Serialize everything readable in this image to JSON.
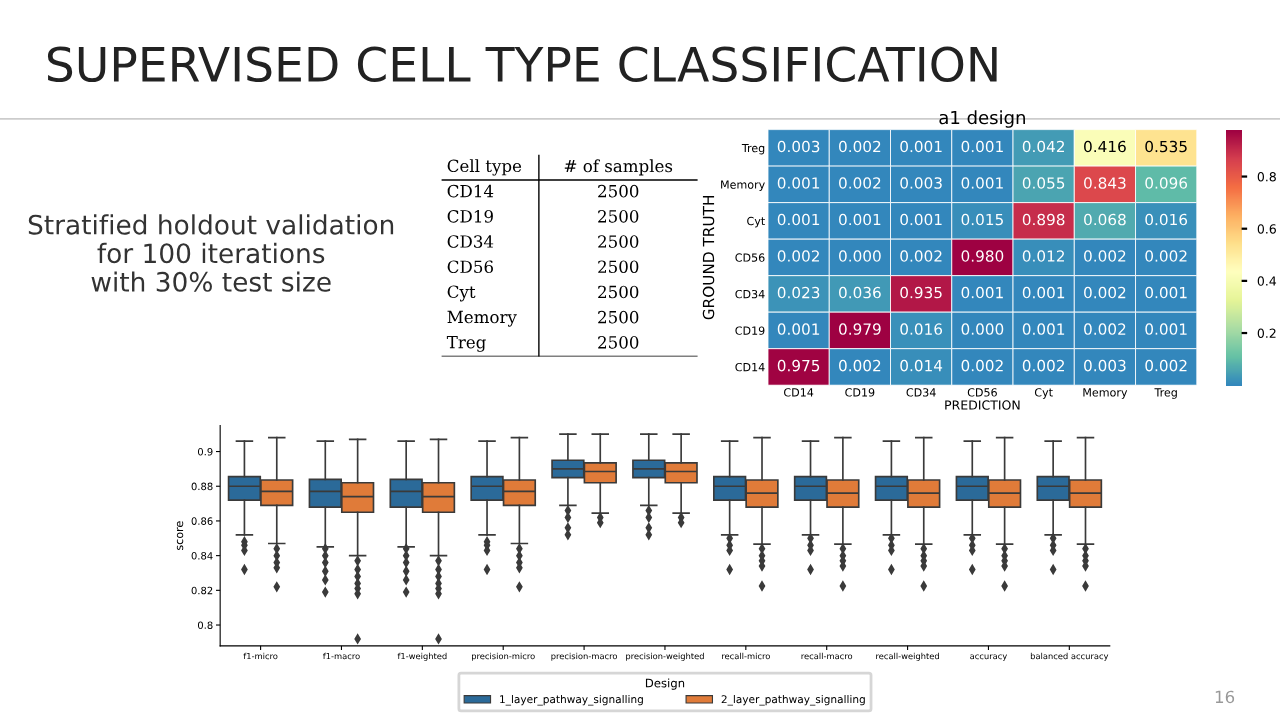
{
  "chart_data": [
    {
      "type": "other",
      "title": "SUPERVISED CELL TYPE CLASSIFICATION",
      "annotations": [
        "Stratified holdout validation\nfor 100 iterations\nwith 30% test size",
        "16"
      ]
    },
    {
      "type": "other",
      "categories": [
        "CD14",
        "CD19",
        "CD34",
        "CD56",
        "Cyt",
        "Memory",
        "Treg"
      ],
      "values": [
        2500,
        2500,
        2500,
        2500,
        2500,
        2500,
        2500
      ],
      "data_labels": true,
      "annotations": [
        "Cell type",
        "# of samples"
      ]
    },
    {
      "type": "heatmap",
      "title": "a1 design",
      "xlabel": "PREDICTION",
      "ylabel": "GROUND TRUTH",
      "categories": [
        "CD14",
        "CD19",
        "CD34",
        "CD56",
        "Cyt",
        "Memory",
        "Treg"
      ],
      "y_categories": [
        "Treg",
        "Memory",
        "Cyt",
        "CD56",
        "CD34",
        "CD19",
        "CD14"
      ],
      "cells": [
        [
          0.003,
          0.002,
          0.001,
          0.001,
          0.042,
          0.416,
          0.535
        ],
        [
          0.001,
          0.002,
          0.003,
          0.001,
          0.055,
          0.843,
          0.096
        ],
        [
          0.001,
          0.001,
          0.001,
          0.015,
          0.898,
          0.068,
          0.016
        ],
        [
          0.002,
          0.0,
          0.002,
          0.98,
          0.012,
          0.002,
          0.002
        ],
        [
          0.023,
          0.036,
          0.935,
          0.001,
          0.001,
          0.002,
          0.001
        ],
        [
          0.001,
          0.979,
          0.016,
          0.0,
          0.001,
          0.002,
          0.001
        ],
        [
          0.975,
          0.002,
          0.014,
          0.002,
          0.002,
          0.003,
          0.002
        ]
      ],
      "cell_labels": [
        [
          "0.003",
          "0.002",
          "0.001",
          "0.001",
          "0.042",
          "0.416",
          "0.535"
        ],
        [
          "0.001",
          "0.002",
          "0.003",
          "0.001",
          "0.055",
          "0.843",
          "0.096"
        ],
        [
          "0.001",
          "0.001",
          "0.001",
          "0.015",
          "0.898",
          "0.068",
          "0.016"
        ],
        [
          "0.002",
          "0.000",
          "0.002",
          "0.980",
          "0.012",
          "0.002",
          "0.002"
        ],
        [
          "0.023",
          "0.036",
          "0.935",
          "0.001",
          "0.001",
          "0.002",
          "0.001"
        ],
        [
          "0.001",
          "0.979",
          "0.016",
          "0.000",
          "0.001",
          "0.002",
          "0.001"
        ],
        [
          "0.975",
          "0.002",
          "0.014",
          "0.002",
          "0.002",
          "0.003",
          "0.002"
        ]
      ],
      "clim": [
        0.0,
        0.98
      ],
      "cticks": [
        0.2,
        0.4,
        0.6,
        0.8
      ]
    },
    {
      "type": "box",
      "ylabel": "score",
      "legend_title": "Design",
      "legend": "bottom",
      "grid": false,
      "categories": [
        "f1-micro",
        "f1-macro",
        "f1-weighted",
        "precision-micro",
        "precision-macro",
        "precision-weighted",
        "recall-micro",
        "recall-macro",
        "recall-weighted",
        "accuracy",
        "balanced accuracy"
      ],
      "ylim": [
        0.788,
        0.915
      ],
      "yticks": [
        0.8,
        0.82,
        0.84,
        0.86,
        0.88,
        0.9
      ],
      "series": [
        {
          "name": "1_layer_pathway_signalling",
          "color": "#2b6a99",
          "boxes": [
            {
              "low": 0.852,
              "q1": 0.872,
              "median": 0.88,
              "q3": 0.8855,
              "high": 0.906,
              "outliers": [
                0.848,
                0.846,
                0.843,
                0.832
              ]
            },
            {
              "low": 0.845,
              "q1": 0.868,
              "median": 0.877,
              "q3": 0.884,
              "high": 0.906,
              "outliers": [
                0.844,
                0.84,
                0.836,
                0.831,
                0.826,
                0.819
              ]
            },
            {
              "low": 0.845,
              "q1": 0.868,
              "median": 0.877,
              "q3": 0.884,
              "high": 0.906,
              "outliers": [
                0.844,
                0.84,
                0.836,
                0.831,
                0.826,
                0.819
              ]
            },
            {
              "low": 0.852,
              "q1": 0.872,
              "median": 0.88,
              "q3": 0.8855,
              "high": 0.906,
              "outliers": [
                0.848,
                0.846,
                0.843,
                0.832
              ]
            },
            {
              "low": 0.869,
              "q1": 0.885,
              "median": 0.89,
              "q3": 0.895,
              "high": 0.91,
              "outliers": [
                0.866,
                0.862,
                0.856,
                0.852
              ]
            },
            {
              "low": 0.869,
              "q1": 0.885,
              "median": 0.89,
              "q3": 0.895,
              "high": 0.91,
              "outliers": [
                0.866,
                0.862,
                0.856,
                0.852
              ]
            },
            {
              "low": 0.852,
              "q1": 0.872,
              "median": 0.88,
              "q3": 0.8855,
              "high": 0.906,
              "outliers": [
                0.85,
                0.846,
                0.843,
                0.832
              ]
            },
            {
              "low": 0.852,
              "q1": 0.872,
              "median": 0.88,
              "q3": 0.8855,
              "high": 0.906,
              "outliers": [
                0.85,
                0.846,
                0.843,
                0.832
              ]
            },
            {
              "low": 0.852,
              "q1": 0.872,
              "median": 0.88,
              "q3": 0.8855,
              "high": 0.906,
              "outliers": [
                0.85,
                0.846,
                0.843,
                0.832
              ]
            },
            {
              "low": 0.852,
              "q1": 0.872,
              "median": 0.88,
              "q3": 0.8855,
              "high": 0.906,
              "outliers": [
                0.85,
                0.846,
                0.843,
                0.832
              ]
            },
            {
              "low": 0.852,
              "q1": 0.872,
              "median": 0.88,
              "q3": 0.8855,
              "high": 0.906,
              "outliers": [
                0.85,
                0.846,
                0.843,
                0.832
              ]
            }
          ]
        },
        {
          "name": "2_layer_pathway_signalling",
          "color": "#e07b39",
          "boxes": [
            {
              "low": 0.847,
              "q1": 0.869,
              "median": 0.877,
              "q3": 0.8836,
              "high": 0.908,
              "outliers": [
                0.844,
                0.84,
                0.836,
                0.833,
                0.822
              ]
            },
            {
              "low": 0.84,
              "q1": 0.865,
              "median": 0.874,
              "q3": 0.882,
              "high": 0.907,
              "outliers": [
                0.837,
                0.832,
                0.828,
                0.824,
                0.821,
                0.818,
                0.792
              ]
            },
            {
              "low": 0.84,
              "q1": 0.865,
              "median": 0.874,
              "q3": 0.882,
              "high": 0.907,
              "outliers": [
                0.837,
                0.832,
                0.828,
                0.824,
                0.821,
                0.818,
                0.792
              ]
            },
            {
              "low": 0.847,
              "q1": 0.869,
              "median": 0.877,
              "q3": 0.8836,
              "high": 0.908,
              "outliers": [
                0.844,
                0.84,
                0.836,
                0.833,
                0.822
              ]
            },
            {
              "low": 0.8645,
              "q1": 0.882,
              "median": 0.8885,
              "q3": 0.8935,
              "high": 0.91,
              "outliers": [
                0.862,
                0.859
              ]
            },
            {
              "low": 0.8645,
              "q1": 0.882,
              "median": 0.8885,
              "q3": 0.8935,
              "high": 0.91,
              "outliers": [
                0.862,
                0.859
              ]
            },
            {
              "low": 0.8466,
              "q1": 0.868,
              "median": 0.876,
              "q3": 0.8836,
              "high": 0.908,
              "outliers": [
                0.844,
                0.84,
                0.837,
                0.834,
                0.8225
              ]
            },
            {
              "low": 0.8466,
              "q1": 0.868,
              "median": 0.876,
              "q3": 0.8836,
              "high": 0.908,
              "outliers": [
                0.844,
                0.84,
                0.837,
                0.834,
                0.8225
              ]
            },
            {
              "low": 0.8466,
              "q1": 0.868,
              "median": 0.876,
              "q3": 0.8836,
              "high": 0.908,
              "outliers": [
                0.844,
                0.84,
                0.837,
                0.834,
                0.8225
              ]
            },
            {
              "low": 0.8466,
              "q1": 0.868,
              "median": 0.876,
              "q3": 0.8836,
              "high": 0.908,
              "outliers": [
                0.844,
                0.84,
                0.837,
                0.834,
                0.8225
              ]
            },
            {
              "low": 0.8466,
              "q1": 0.868,
              "median": 0.876,
              "q3": 0.8836,
              "high": 0.908,
              "outliers": [
                0.844,
                0.84,
                0.837,
                0.834,
                0.8225
              ]
            }
          ]
        }
      ]
    }
  ]
}
